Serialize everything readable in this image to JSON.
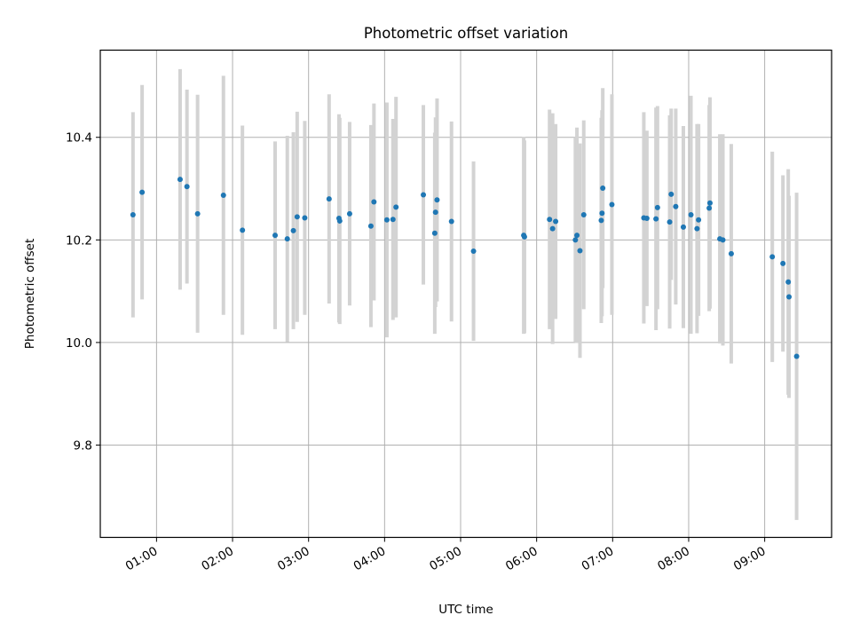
{
  "chart_data": {
    "type": "scatter",
    "title": "Photometric offset variation",
    "xlabel": "UTC time",
    "ylabel": "Photometric offset",
    "x_unit": "hours UTC",
    "x_ticks": [
      1,
      2,
      3,
      4,
      5,
      6,
      7,
      8,
      9
    ],
    "x_tick_labels": [
      "01:00",
      "02:00",
      "03:00",
      "04:00",
      "05:00",
      "06:00",
      "07:00",
      "08:00",
      "09:00"
    ],
    "xlim": [
      0.26,
      9.88
    ],
    "y_ticks": [
      9.8,
      10.0,
      10.2,
      10.4
    ],
    "y_tick_labels": [
      "9.8",
      "10.0",
      "10.2",
      "10.4"
    ],
    "ylim": [
      9.62,
      10.57
    ],
    "grid": true,
    "colors": {
      "point": "#1f77b4",
      "errorbar": "#d3d3d3",
      "grid": "#b0b0b0"
    },
    "series": [
      {
        "x": [
          0.69,
          0.81,
          1.31,
          1.4,
          1.54,
          1.88,
          2.13,
          2.56,
          2.72,
          2.8,
          2.85,
          2.95,
          3.27,
          3.4,
          3.41,
          3.54,
          3.82,
          3.86,
          4.03,
          4.11,
          4.15,
          4.51,
          4.66,
          4.67,
          4.69,
          4.88,
          5.17,
          5.83,
          5.84,
          6.17,
          6.21,
          6.25,
          6.51,
          6.53,
          6.57,
          6.62,
          6.85,
          6.86,
          6.87,
          6.99,
          7.41,
          7.45,
          7.57,
          7.59,
          7.75,
          7.77,
          7.83,
          7.93,
          8.03,
          8.11,
          8.13,
          8.27,
          8.28,
          8.41,
          8.45,
          8.56,
          9.1,
          9.24,
          9.31,
          9.32,
          9.42
        ],
        "y": [
          10.249,
          10.293,
          10.318,
          10.304,
          10.251,
          10.287,
          10.219,
          10.209,
          10.202,
          10.218,
          10.245,
          10.243,
          10.28,
          10.242,
          10.237,
          10.251,
          10.227,
          10.274,
          10.239,
          10.24,
          10.264,
          10.288,
          10.213,
          10.254,
          10.278,
          10.236,
          10.178,
          10.209,
          10.206,
          10.24,
          10.222,
          10.236,
          10.2,
          10.209,
          10.179,
          10.249,
          10.238,
          10.252,
          10.301,
          10.269,
          10.243,
          10.242,
          10.241,
          10.263,
          10.235,
          10.289,
          10.265,
          10.225,
          10.249,
          10.222,
          10.239,
          10.262,
          10.272,
          10.202,
          10.2,
          10.173,
          10.167,
          10.154,
          10.118,
          10.089,
          9.973
        ],
        "yerr": [
          0.2,
          0.209,
          0.215,
          0.189,
          0.232,
          0.233,
          0.204,
          0.183,
          0.201,
          0.192,
          0.205,
          0.189,
          0.204,
          0.203,
          0.201,
          0.179,
          0.197,
          0.192,
          0.229,
          0.196,
          0.215,
          0.175,
          0.196,
          0.185,
          0.198,
          0.195,
          0.175,
          0.192,
          0.188,
          0.214,
          0.225,
          0.19,
          0.2,
          0.21,
          0.209,
          0.184,
          0.2,
          0.201,
          0.195,
          0.215,
          0.206,
          0.171,
          0.217,
          0.198,
          0.208,
          0.167,
          0.191,
          0.197,
          0.232,
          0.204,
          0.187,
          0.201,
          0.206,
          0.204,
          0.206,
          0.214,
          0.205,
          0.172,
          0.22,
          0.197,
          0.319
        ]
      }
    ]
  }
}
